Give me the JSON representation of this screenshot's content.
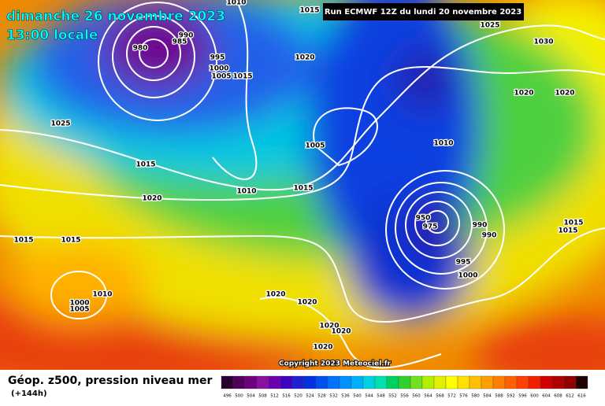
{
  "header": {
    "date": "dimanche 26 novembre 2023",
    "time": "13:00 locale",
    "run": "Run ECMWF 12Z du lundi 20 novembre 2023"
  },
  "isobar_labels": [
    1010,
    1015,
    1025,
    1030,
    990,
    985,
    980,
    995,
    1000,
    1005,
    1015,
    1020,
    1020,
    1020,
    1025,
    1005,
    1010,
    1015,
    1010,
    1015,
    1020,
    1015,
    1015,
    950,
    975,
    990,
    990,
    1015,
    1015,
    1010,
    1000,
    1005,
    995,
    1000,
    1020,
    1020,
    1020,
    1020,
    1020
  ],
  "footer": {
    "title": "Géop. z500, pression niveau mer",
    "lead": "(+144h)",
    "copyright": "Copyright 2023 Meteociel.fr"
  },
  "legend": {
    "labels": [
      496,
      500,
      504,
      508,
      512,
      516,
      520,
      524,
      528,
      532,
      536,
      540,
      544,
      548,
      552,
      556,
      560,
      564,
      568,
      572,
      576,
      580,
      584,
      588,
      592,
      596,
      600,
      604,
      608,
      612,
      616
    ],
    "colors": [
      "#2a0030",
      "#50005a",
      "#700080",
      "#8a10a0",
      "#6a00b0",
      "#4000c0",
      "#2020d0",
      "#0030e0",
      "#0050f0",
      "#0070ff",
      "#0090ff",
      "#00b0ff",
      "#00d0e0",
      "#00e0b0",
      "#00d060",
      "#30d030",
      "#70e020",
      "#b0f000",
      "#e0f000",
      "#ffff00",
      "#ffe000",
      "#ffc000",
      "#ffa000",
      "#ff8000",
      "#ff6000",
      "#ff4000",
      "#f02000",
      "#d00000",
      "#b00000",
      "#900000",
      "#200000"
    ]
  }
}
